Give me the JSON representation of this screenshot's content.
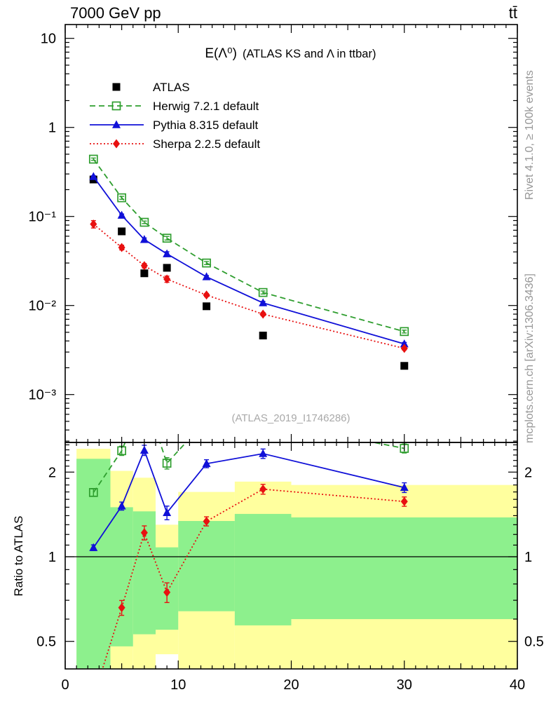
{
  "header": {
    "beam_label": "7000 GeV pp",
    "process_label": "tt̄"
  },
  "titles": {
    "observable": "E(Λ⁰)",
    "description": "(ATLAS KS and Λ in ttbar)",
    "watermark": "(ATLAS_2019_I1746286)",
    "side_top": "Rivet 4.1.0, ≥ 100k events",
    "side_bottom": "mcplots.cern.ch [arXiv:1306.3436]",
    "ratio_ylabel": "Ratio to ATLAS"
  },
  "colors": {
    "atlas": "#000000",
    "herwig": "#2f9e2f",
    "pythia": "#1010d8",
    "sherpa": "#e81010",
    "band_yellow": "#ffff9e",
    "band_green": "#8df08d",
    "frame": "#000000"
  },
  "chart_data": {
    "type": "line",
    "title": "E(Λ⁰) (ATLAS KS and Λ in ttbar)",
    "xlabel": "",
    "ylabel": "",
    "xlim": [
      0,
      40
    ],
    "xticks": [
      0,
      10,
      20,
      30,
      40
    ],
    "bin_edges": [
      1,
      4,
      6,
      8,
      10,
      15,
      20,
      40
    ],
    "x_centers": [
      2.5,
      5,
      7,
      9,
      12.5,
      17.5,
      30
    ],
    "main_axis": {
      "scale": "log",
      "ylim": [
        0.000295,
        14.3
      ],
      "yticks": [
        {
          "value": 10,
          "label": "10"
        },
        {
          "value": 1,
          "label": "1"
        },
        {
          "value": 0.1,
          "label": "10⁻¹"
        },
        {
          "value": 0.01,
          "label": "10⁻²"
        },
        {
          "value": 0.001,
          "label": "10⁻³"
        }
      ]
    },
    "ratio_axis": {
      "scale": "log",
      "ylim": [
        0.4,
        2.54
      ],
      "yticks": [
        {
          "value": 0.5,
          "label": "0.5"
        },
        {
          "value": 1,
          "label": "1"
        },
        {
          "value": 2,
          "label": "2"
        }
      ]
    },
    "series": [
      {
        "name": "ATLAS",
        "color_key": "atlas",
        "marker": "filled-square",
        "line": "none",
        "values": [
          0.26,
          0.068,
          0.023,
          0.0265,
          0.0098,
          0.0046,
          0.0021
        ],
        "ratio_err": [
          0,
          0,
          0,
          0,
          0,
          0,
          0
        ]
      },
      {
        "name": "Herwig 7.2.1 default",
        "color_key": "herwig",
        "marker": "open-square",
        "line": "dashed",
        "values": [
          0.44,
          0.162,
          0.086,
          0.057,
          0.03,
          0.014,
          0.0051
        ],
        "ratio_err": [
          0.05,
          0.09,
          0.12,
          0.1,
          0.12,
          0.12,
          0.09
        ]
      },
      {
        "name": "Pythia 8.315 default",
        "color_key": "pythia",
        "marker": "filled-triangle",
        "line": "solid",
        "values": [
          0.28,
          0.103,
          0.055,
          0.038,
          0.021,
          0.0107,
          0.0037
        ],
        "ratio_err": [
          0.025,
          0.05,
          0.1,
          0.08,
          0.07,
          0.09,
          0.07
        ]
      },
      {
        "name": "Sherpa 2.2.5 default",
        "color_key": "sherpa",
        "marker": "filled-diamond",
        "line": "dotted",
        "values": [
          0.082,
          0.0448,
          0.028,
          0.0198,
          0.0131,
          0.008,
          0.0033
        ],
        "ratio_err": [
          0.03,
          0.04,
          0.07,
          0.06,
          0.05,
          0.07,
          0.06
        ]
      }
    ],
    "ratio_bands": {
      "yellow": [
        [
          0.4,
          2.42
        ],
        [
          0.4,
          2.02
        ],
        [
          0.4,
          1.91
        ],
        [
          0.45,
          1.3
        ],
        [
          0.4,
          1.7
        ],
        [
          0.4,
          1.85
        ],
        [
          0.4,
          1.8
        ]
      ],
      "green": [
        [
          0.4,
          2.23
        ],
        [
          0.48,
          1.5
        ],
        [
          0.53,
          1.45
        ],
        [
          0.55,
          1.08
        ],
        [
          0.64,
          1.34
        ],
        [
          0.57,
          1.42
        ],
        [
          0.6,
          1.38
        ]
      ]
    },
    "legend_position": "upper-left",
    "grid": false
  }
}
